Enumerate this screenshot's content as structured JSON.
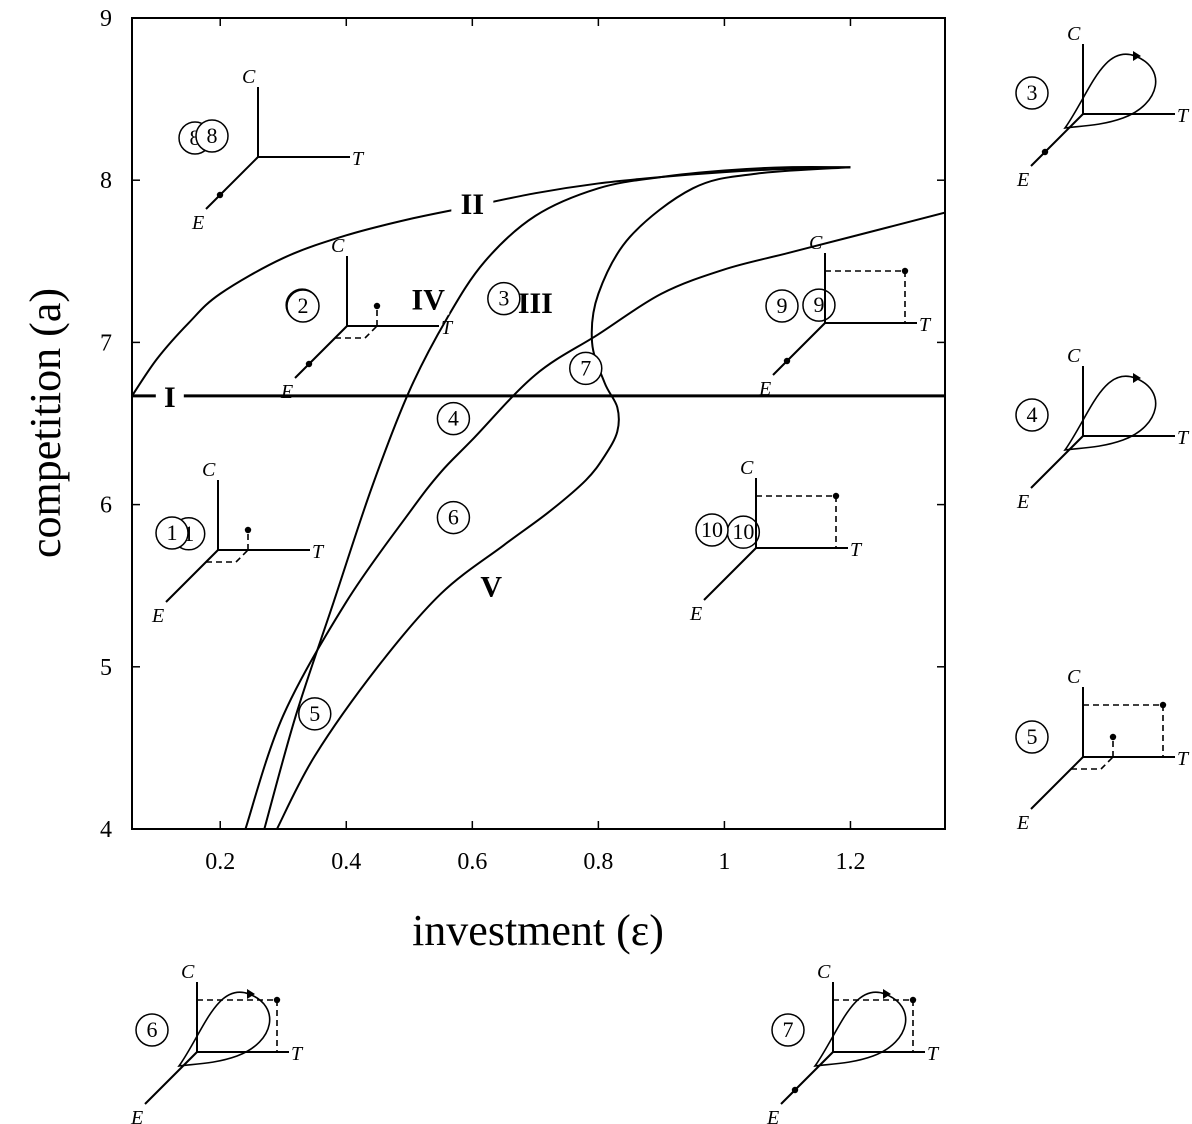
{
  "chart_data": {
    "type": "line",
    "xlabel": "investment (ε)",
    "ylabel": "competition (a)",
    "xlim": [
      0.06,
      1.35
    ],
    "ylim": [
      4,
      9
    ],
    "xticks": [
      {
        "value": 0.2,
        "label": "0.2"
      },
      {
        "value": 0.4,
        "label": "0.4"
      },
      {
        "value": 0.6,
        "label": "0.6"
      },
      {
        "value": 0.8,
        "label": "0.8"
      },
      {
        "value": 1.0,
        "label": "1"
      },
      {
        "value": 1.2,
        "label": "1.2"
      }
    ],
    "yticks": [
      {
        "value": 4,
        "label": "4"
      },
      {
        "value": 5,
        "label": "5"
      },
      {
        "value": 6,
        "label": "6"
      },
      {
        "value": 7,
        "label": "7"
      },
      {
        "value": 8,
        "label": "8"
      },
      {
        "value": 9,
        "label": "9"
      }
    ],
    "grid": false,
    "series": [
      {
        "name": "I",
        "x": [
          0.06,
          1.35
        ],
        "y": [
          6.67,
          6.67
        ]
      },
      {
        "name": "II",
        "x": [
          0.06,
          0.1,
          0.15,
          0.2,
          0.3,
          0.4,
          0.5,
          0.6,
          0.7,
          0.8,
          0.9,
          1.0,
          1.1,
          1.2
        ],
        "y": [
          6.67,
          6.9,
          7.12,
          7.3,
          7.52,
          7.66,
          7.76,
          7.84,
          7.92,
          7.98,
          8.02,
          8.05,
          8.07,
          8.08
        ]
      },
      {
        "name": "III",
        "x": [
          0.24,
          0.3,
          0.4,
          0.5,
          0.55,
          0.6,
          0.7,
          0.8,
          0.9,
          1.0,
          1.1,
          1.2,
          1.35
        ],
        "y": [
          4.0,
          4.7,
          5.4,
          5.95,
          6.2,
          6.4,
          6.8,
          7.05,
          7.3,
          7.45,
          7.55,
          7.65,
          7.8
        ]
      },
      {
        "name": "IV",
        "x": [
          0.27,
          0.32,
          0.38,
          0.44,
          0.5,
          0.56,
          0.62,
          0.7,
          0.8,
          0.9,
          1.0,
          1.1,
          1.2
        ],
        "y": [
          4.0,
          4.7,
          5.4,
          6.1,
          6.7,
          7.15,
          7.5,
          7.78,
          7.95,
          8.02,
          8.06,
          8.08,
          8.08
        ]
      },
      {
        "name": "V",
        "x": [
          0.29,
          0.35,
          0.45,
          0.55,
          0.65,
          0.72,
          0.78,
          0.81,
          0.83,
          0.83,
          0.81,
          0.79,
          0.8,
          0.85,
          0.95,
          1.05,
          1.2
        ],
        "y": [
          4.0,
          4.45,
          5.0,
          5.45,
          5.75,
          5.95,
          6.15,
          6.3,
          6.45,
          6.6,
          6.75,
          7.0,
          7.3,
          7.65,
          7.95,
          8.04,
          8.08
        ]
      }
    ],
    "curve_labels": [
      {
        "text": "I",
        "x": 0.12,
        "y": 6.67
      },
      {
        "text": "II",
        "x": 0.6,
        "y": 7.86
      },
      {
        "text": "III",
        "x": 0.7,
        "y": 7.25
      },
      {
        "text": "IV",
        "x": 0.53,
        "y": 7.27
      },
      {
        "text": "V",
        "x": 0.63,
        "y": 5.5
      }
    ],
    "region_labels": [
      {
        "text": "1",
        "x": 0.15,
        "y": 5.82
      },
      {
        "text": "2",
        "x": 0.33,
        "y": 7.23
      },
      {
        "text": "3",
        "x": 0.65,
        "y": 7.27
      },
      {
        "text": "4",
        "x": 0.57,
        "y": 6.53
      },
      {
        "text": "5",
        "x": 0.35,
        "y": 4.71
      },
      {
        "text": "6",
        "x": 0.57,
        "y": 5.92
      },
      {
        "text": "7",
        "x": 0.78,
        "y": 6.84
      },
      {
        "text": "8",
        "x": 0.16,
        "y": 8.26
      },
      {
        "text": "9",
        "x": 1.15,
        "y": 7.23
      },
      {
        "text": "10",
        "x": 1.03,
        "y": 5.83
      }
    ]
  },
  "phase_portraits": [
    {
      "number": "1",
      "dot": "near-origin-low",
      "dashed_box": "small",
      "cycle": false,
      "e_dot": false,
      "c_label": "C",
      "t_label": "T",
      "e_label": "E"
    },
    {
      "number": "2",
      "dot": "near-origin-low",
      "dashed_box": "small",
      "cycle": false,
      "e_dot": true,
      "c_label": "C",
      "t_label": "T",
      "e_label": "E"
    },
    {
      "number": "3",
      "dot": "none",
      "dashed_box": "none",
      "cycle": true,
      "e_dot": true,
      "c_label": "C",
      "t_label": "T",
      "e_label": "E"
    },
    {
      "number": "4",
      "dot": "none",
      "dashed_box": "none",
      "cycle": true,
      "e_dot": false,
      "c_label": "C",
      "t_label": "T",
      "e_label": "E"
    },
    {
      "number": "5",
      "dot": "two",
      "dashed_box": "large-and-small",
      "cycle": false,
      "e_dot": false,
      "c_label": "C",
      "t_label": "T",
      "e_label": "E"
    },
    {
      "number": "6",
      "dot": "high",
      "dashed_box": "large",
      "cycle": true,
      "e_dot": false,
      "c_label": "C",
      "t_label": "T",
      "e_label": "E"
    },
    {
      "number": "7",
      "dot": "high",
      "dashed_box": "large",
      "cycle": true,
      "e_dot": true,
      "c_label": "C",
      "t_label": "T",
      "e_label": "E"
    },
    {
      "number": "8",
      "dot": "none",
      "dashed_box": "none",
      "cycle": false,
      "e_dot": true,
      "c_label": "C",
      "t_label": "T",
      "e_label": "E"
    },
    {
      "number": "9",
      "dot": "high",
      "dashed_box": "large",
      "cycle": false,
      "e_dot": true,
      "c_label": "C",
      "t_label": "T",
      "e_label": "E"
    },
    {
      "number": "10",
      "dot": "high",
      "dashed_box": "large",
      "cycle": false,
      "e_dot": false,
      "c_label": "C",
      "t_label": "T",
      "e_label": "E"
    }
  ]
}
